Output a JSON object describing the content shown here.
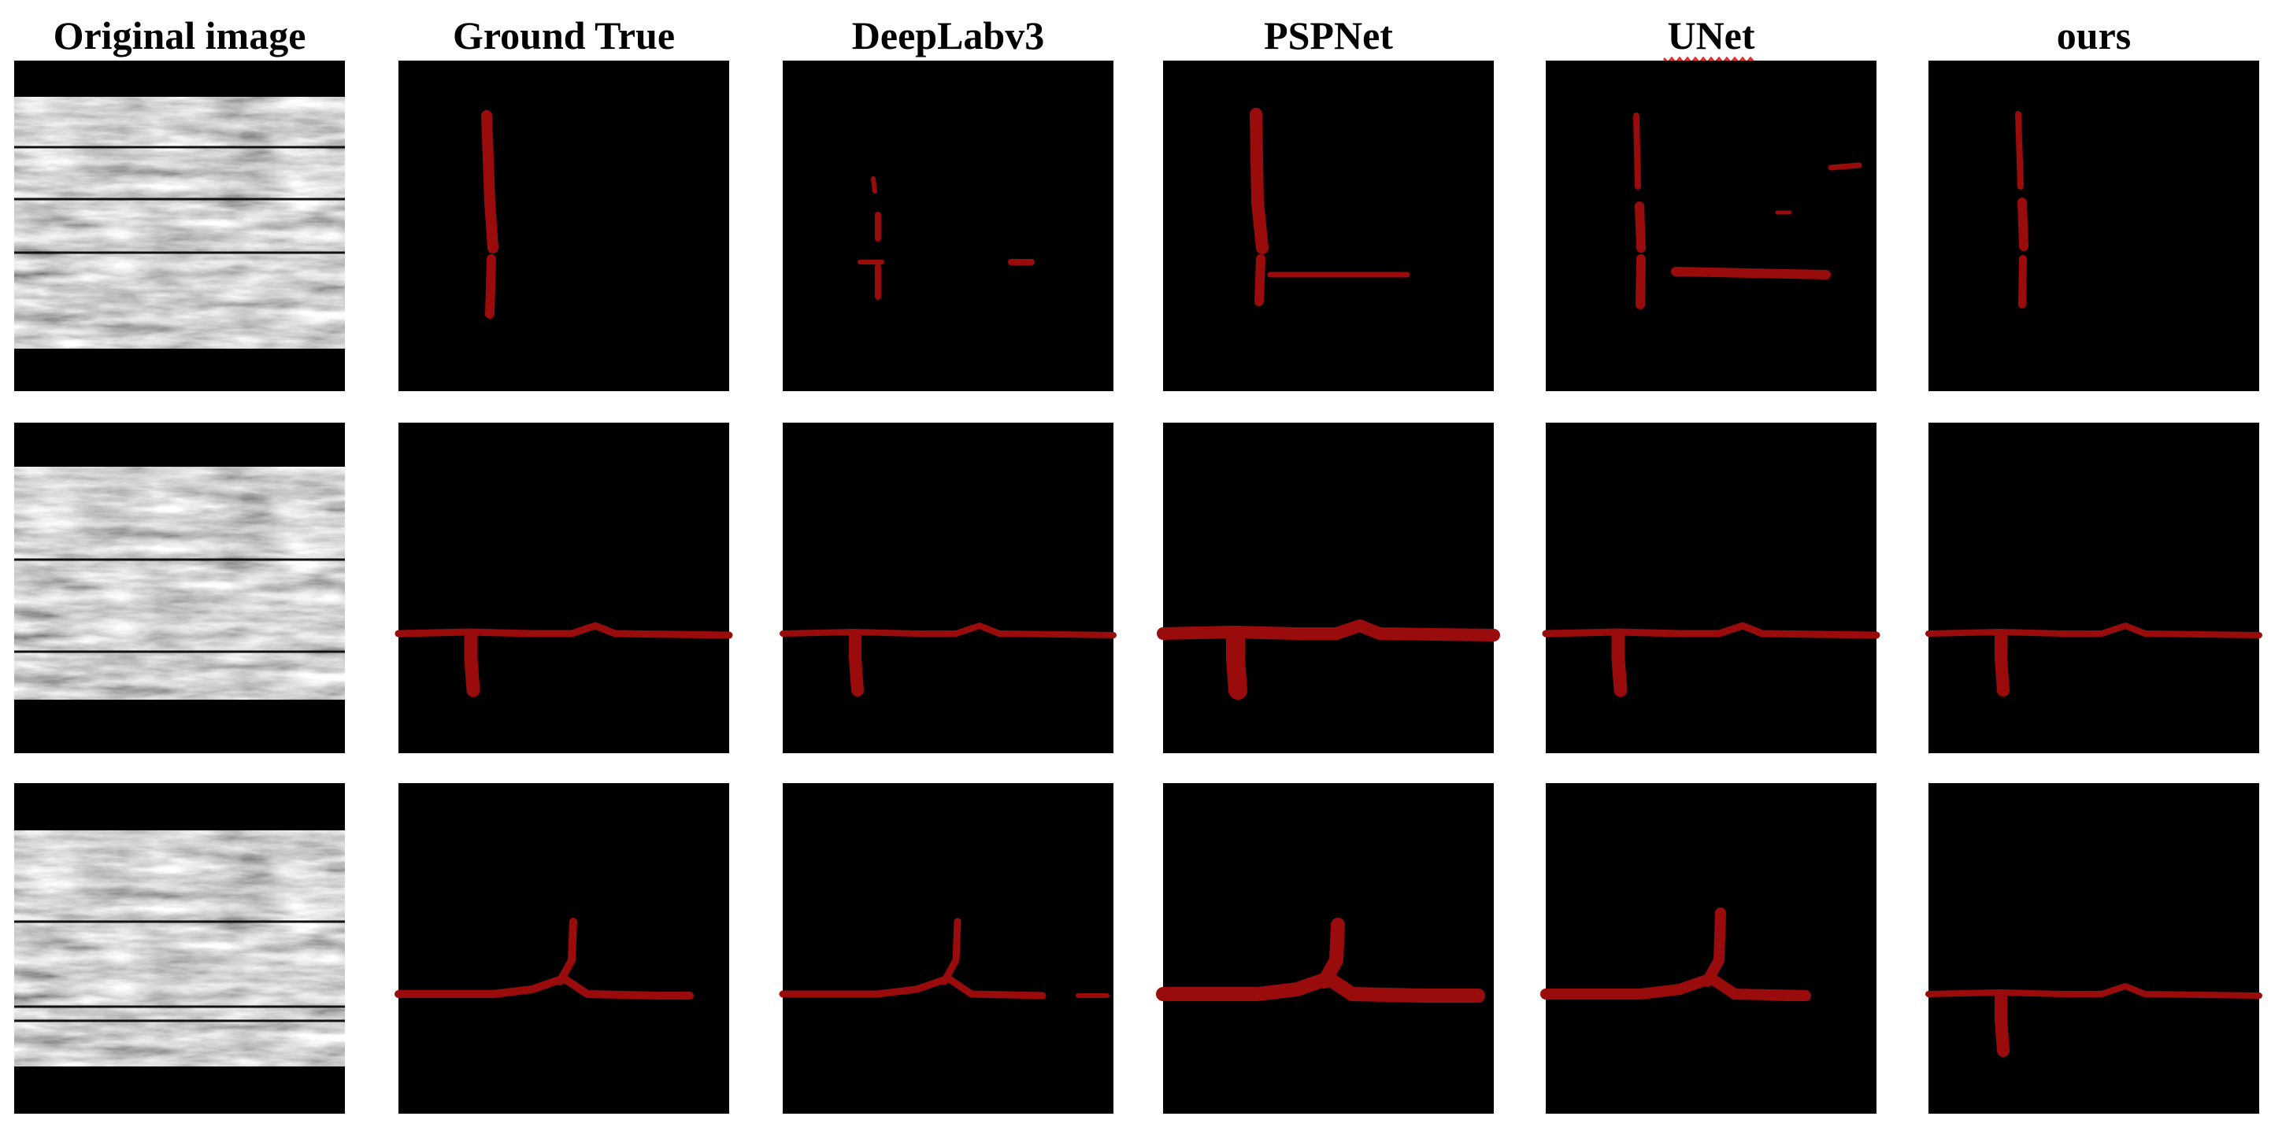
{
  "columns": [
    "Original image",
    "Ground True",
    "DeepLabv3",
    "PSPNet",
    "UNet",
    "ours"
  ]
}
